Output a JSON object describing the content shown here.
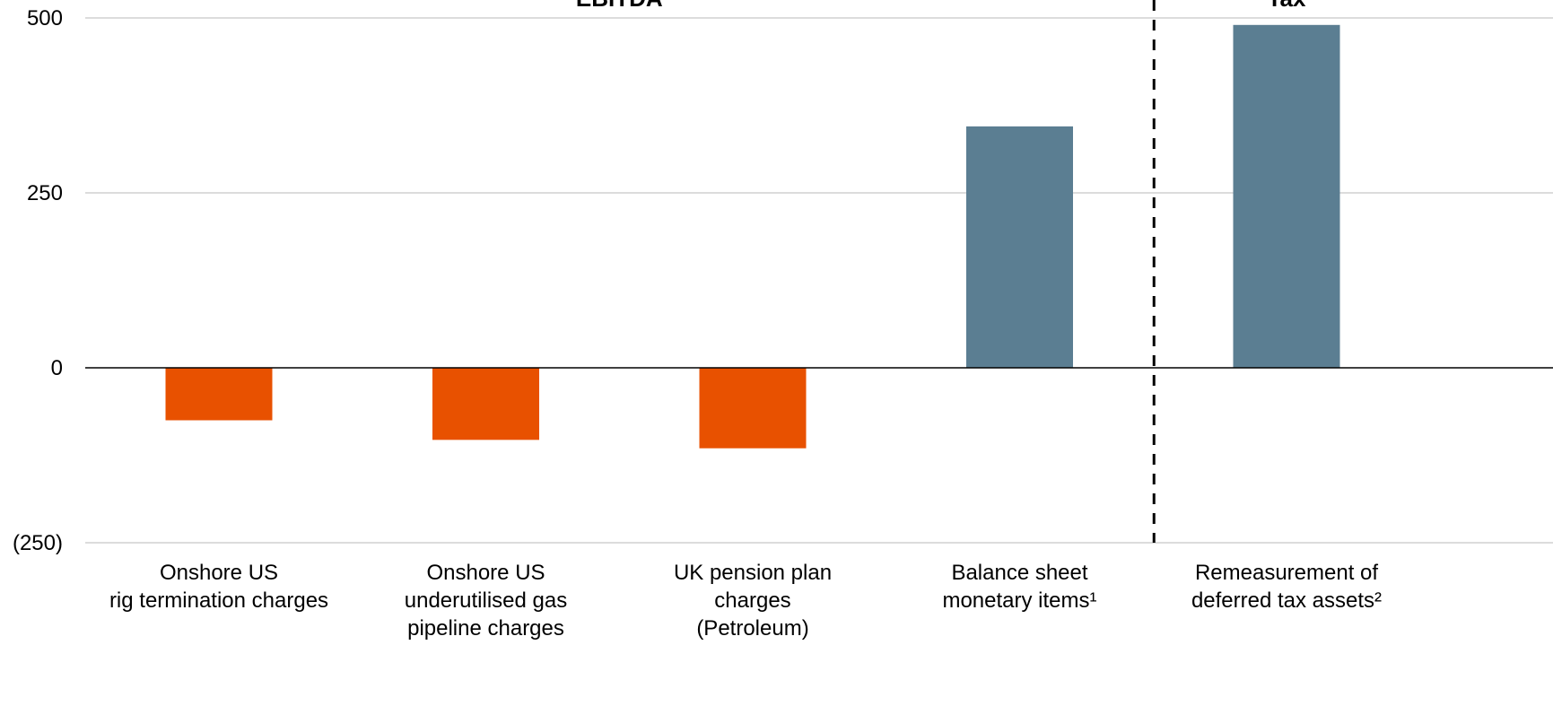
{
  "chart_data": {
    "type": "bar",
    "categories": [
      [
        "Onshore US",
        "rig termination charges"
      ],
      [
        "Onshore US",
        "underutilised gas",
        "pipeline charges"
      ],
      [
        "UK pension plan",
        "charges",
        "(Petroleum)"
      ],
      [
        "Balance sheet",
        "monetary items¹"
      ],
      [
        "Remeasurement of",
        "deferred tax assets²"
      ]
    ],
    "values": [
      -75,
      -103,
      -115,
      345,
      490
    ],
    "bar_colors": [
      "#E85100",
      "#E85100",
      "#E85100",
      "#5B7E92",
      "#5B7E92"
    ],
    "y_ticks": [
      {
        "value": 500,
        "label": "500"
      },
      {
        "value": 250,
        "label": "250"
      },
      {
        "value": 0,
        "label": "0"
      },
      {
        "value": -250,
        "label": "(250)"
      }
    ],
    "ylim": [
      -250,
      500
    ],
    "section_labels": [
      {
        "text": "EBITDA",
        "center_category": 1.5
      },
      {
        "text": "Tax",
        "center_category": 4
      }
    ],
    "divider_after_category": 3,
    "grid": true
  }
}
